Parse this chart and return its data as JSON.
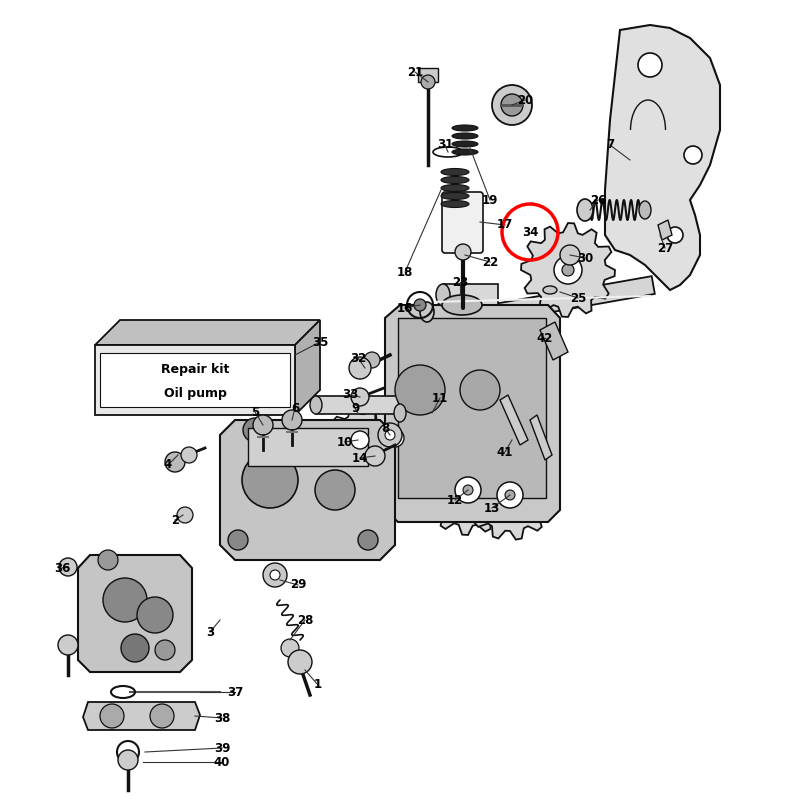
{
  "bg_color": "#ffffff",
  "figsize": [
    8.0,
    8.0
  ],
  "dpi": 100,
  "lc": "#111111",
  "lw": 1.2
}
